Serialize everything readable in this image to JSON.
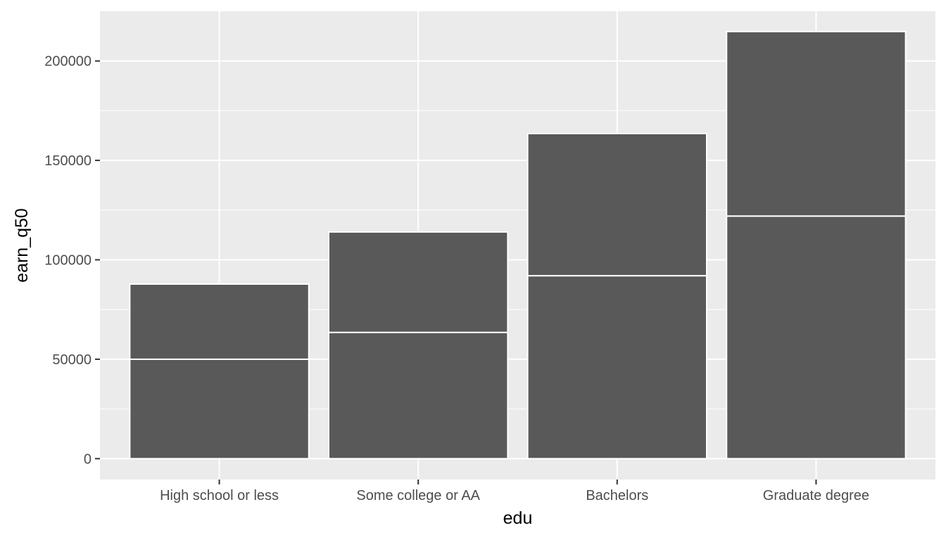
{
  "chart_data": {
    "type": "bar",
    "stacked": true,
    "title": "",
    "xlabel": "edu",
    "ylabel": "earn_q50",
    "categories": [
      "High school or less",
      "Some college or AA",
      "Bachelors",
      "Graduate degree"
    ],
    "segments": [
      {
        "values": [
          50000,
          63500,
          92000,
          122000
        ]
      },
      {
        "values": [
          37800,
          50500,
          71500,
          92800
        ]
      }
    ],
    "totals": [
      87800,
      114000,
      163500,
      214800
    ],
    "ylim": [
      -10500,
      225000
    ],
    "yticks": [
      0,
      50000,
      100000,
      150000,
      200000
    ],
    "ytick_labels": [
      "0",
      "50000",
      "100000",
      "150000",
      "200000"
    ],
    "grid": true,
    "legend": "none",
    "colors": {
      "panel_background": "#ebebeb",
      "grid_major": "#ffffff",
      "grid_minor": "#f5f5f5",
      "bar_fill": "#595959",
      "bar_outline": "#ffffff",
      "tick_text": "#4d4d4d",
      "tick_mark": "#333333",
      "axis_title": "#000000"
    }
  }
}
